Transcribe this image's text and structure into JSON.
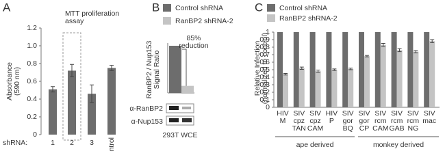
{
  "chart_data": [
    {
      "panel_label": "A",
      "type": "bar",
      "title": [
        "MTT proliferation",
        "assay"
      ],
      "y_label": [
        "Absorbance",
        "(590 nm)"
      ],
      "x_label": "shRNA:",
      "categories": [
        "1",
        "2",
        "3",
        "control"
      ],
      "values": [
        0.51,
        0.72,
        0.46,
        0.75
      ],
      "errors": [
        0.03,
        0.07,
        0.1,
        0.03
      ],
      "color": "#6d6d6d",
      "ylim": [
        0,
        1.2
      ],
      "yticks": [
        0,
        0.2,
        0.4,
        0.6,
        0.8,
        {
          "value": 1,
          "label": "1.0"
        },
        1.2
      ]
    },
    {
      "panel_label": "B",
      "type": "bar",
      "y_label": [
        "RanBP2 / Nup153",
        "Signal Ratio"
      ],
      "series": [
        {
          "name": "Control shRNA",
          "color": "#6d6d6d",
          "values": [
            1
          ]
        },
        {
          "name": "RanBP2 shRNA-2",
          "color": "#c4c4c4",
          "values": [
            0.15
          ]
        }
      ],
      "ylim": [
        0,
        1
      ],
      "annotation": [
        "85%",
        "reduction"
      ],
      "blot_labels": [
        "α-RanBP2",
        "α-Nup153"
      ],
      "blot_caption": "293T WCE"
    },
    {
      "panel_label": "C",
      "type": "bar",
      "y_label": [
        "Relative Infection",
        "(normalized to control)"
      ],
      "categories": [
        [
          "HIV",
          "M"
        ],
        [
          "SIV",
          "cpz",
          "TAN"
        ],
        [
          "SIV",
          "cpz",
          "CAM"
        ],
        [
          "HIV",
          "P"
        ],
        [
          "SIV",
          "gor",
          "BQ"
        ],
        [
          "SIV",
          "gor",
          "CP"
        ],
        [
          "SIV",
          "rcm",
          "CAM"
        ],
        [
          "SIV",
          "rcm",
          "GAB"
        ],
        [
          "SIV",
          "rcm",
          "NG"
        ],
        [
          "SIV",
          "mac"
        ]
      ],
      "series": [
        {
          "name": "Control shRNA",
          "color": "#6d6d6d",
          "values": [
            1,
            1,
            1,
            1,
            1,
            1,
            1,
            1,
            1,
            1
          ]
        },
        {
          "name": "RanBP2 shRNA-2",
          "color": "#c4c4c4",
          "values": [
            0.44,
            0.52,
            0.48,
            0.5,
            0.51,
            0.68,
            0.83,
            0.76,
            0.74,
            0.88
          ],
          "errors": [
            0.01,
            0.015,
            0.015,
            0.01,
            0.01,
            0.01,
            0.02,
            0.02,
            0.015,
            0.02
          ]
        }
      ],
      "ylim": [
        0,
        1
      ],
      "yticks": [
        0,
        0.1,
        0.2,
        0.3,
        0.4,
        0.5,
        0.6,
        0.7,
        0.8,
        0.9,
        1
      ],
      "groups": [
        "ape derived",
        "monkey derived"
      ]
    }
  ]
}
